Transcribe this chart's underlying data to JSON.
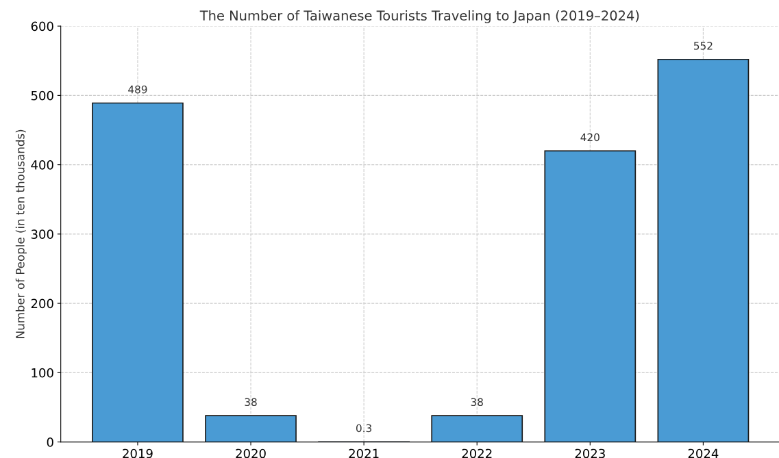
{
  "chart_data": {
    "type": "bar",
    "title": "The Number of Taiwanese Tourists Traveling to Japan (2019–2024)",
    "ylabel": "Number of People (in ten thousands)",
    "categories": [
      "2019",
      "2020",
      "2021",
      "2022",
      "2023",
      "2024"
    ],
    "values": [
      489,
      38,
      0.3,
      38,
      420,
      552
    ],
    "color": "#4a9bd4",
    "ylim": [
      0,
      600
    ],
    "yticks": [
      0,
      100,
      200,
      300,
      400,
      500,
      600
    ],
    "grid": true,
    "data_labels": true
  }
}
